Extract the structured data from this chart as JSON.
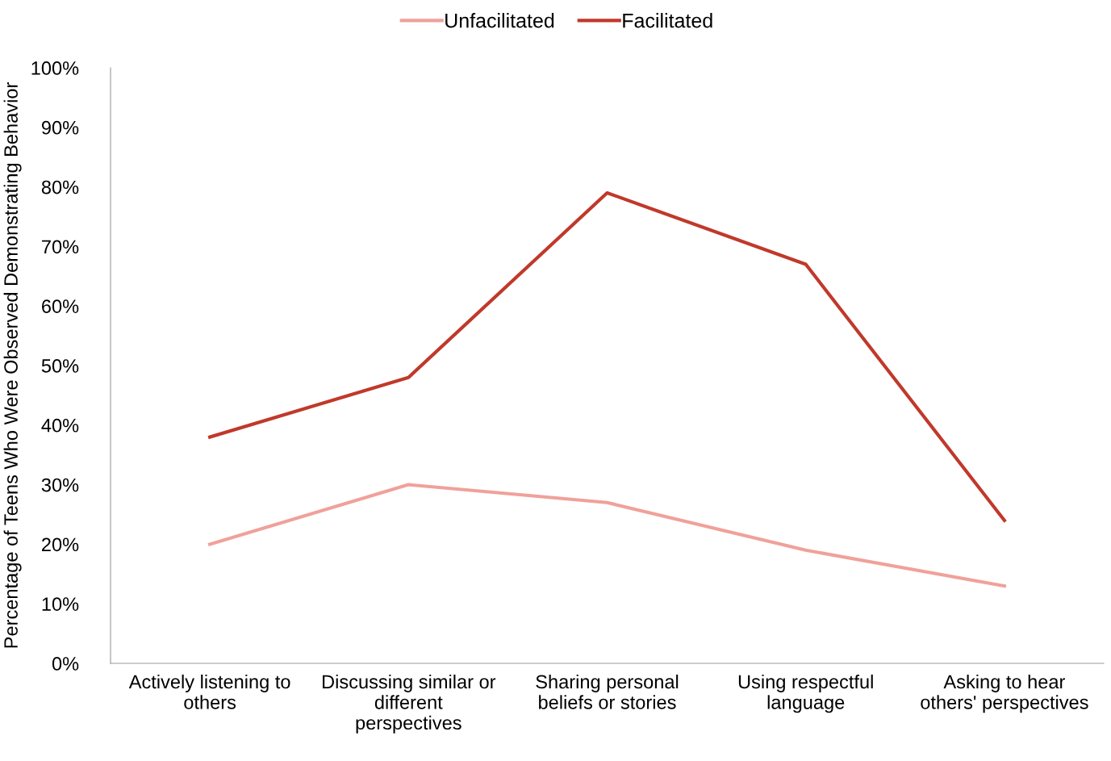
{
  "chart_data": {
    "type": "line",
    "ylabel": "Percentage of Teens Who Were Observed Demonstrating Behavior",
    "categories": [
      "Actively listening to\nothers",
      "Discussing similar or\ndifferent\nperspectives",
      "Sharing personal\nbeliefs or stories",
      "Using respectful\nlanguage",
      "Asking to hear\nothers' perspectives"
    ],
    "series": [
      {
        "name": "Unfacilitated",
        "color": "#f0a19a",
        "values": [
          20,
          30,
          27,
          19,
          13
        ]
      },
      {
        "name": "Facilitated",
        "color": "#c0392b",
        "values": [
          38,
          48,
          79,
          67,
          24
        ]
      }
    ],
    "ylim": [
      0,
      100
    ],
    "yticks": [
      {
        "value": 0,
        "label": "0%"
      },
      {
        "value": 10,
        "label": "10%"
      },
      {
        "value": 20,
        "label": "20%"
      },
      {
        "value": 30,
        "label": "30%"
      },
      {
        "value": 40,
        "label": "40%"
      },
      {
        "value": 50,
        "label": "50%"
      },
      {
        "value": 60,
        "label": "60%"
      },
      {
        "value": 70,
        "label": "70%"
      },
      {
        "value": 80,
        "label": "80%"
      },
      {
        "value": 90,
        "label": "90%"
      },
      {
        "value": 100,
        "label": "100%"
      }
    ],
    "grid": false,
    "legend": "top",
    "marker": "none",
    "line_style": "solid"
  }
}
